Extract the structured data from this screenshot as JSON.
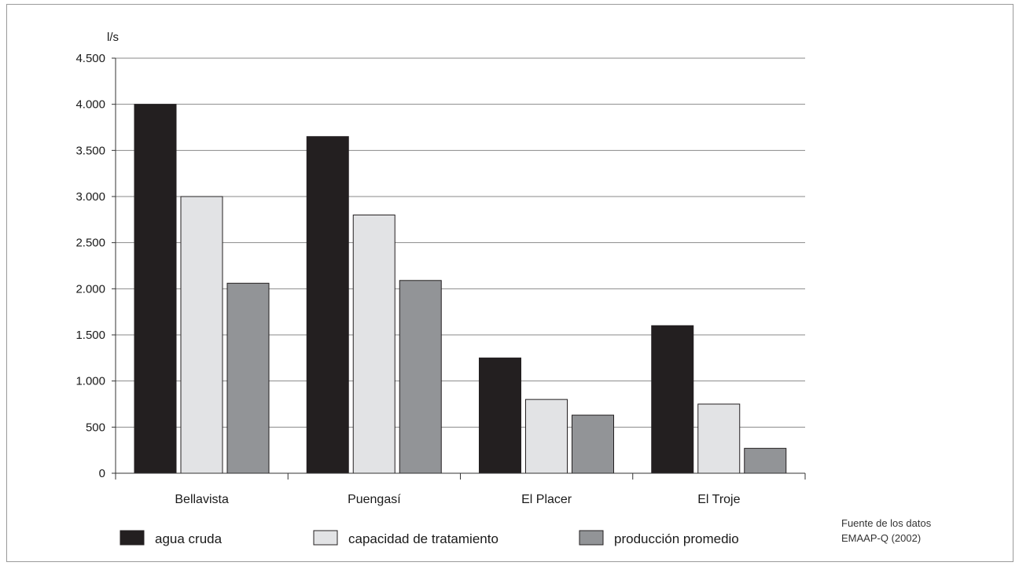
{
  "chart_data": {
    "type": "bar",
    "ylabel": "l/s",
    "ylim": [
      0,
      4500
    ],
    "yticks": [
      0,
      500,
      1000,
      1500,
      2000,
      2500,
      3000,
      3500,
      4000,
      4500
    ],
    "yticklabels": [
      "0",
      "500",
      "1.000",
      "1.500",
      "2.000",
      "2.500",
      "3.000",
      "3.500",
      "4.000",
      "4.500"
    ],
    "grid": true,
    "legend_position": "bottom",
    "categories": [
      "Bellavista",
      "Puengasí",
      "El Placer",
      "El Troje"
    ],
    "series": [
      {
        "name": "agua cruda",
        "color": "#231f20",
        "values": [
          4000,
          3650,
          1250,
          1600
        ]
      },
      {
        "name": "capacidad de tratamiento",
        "color": "#e2e3e5",
        "values": [
          3000,
          2800,
          800,
          750
        ]
      },
      {
        "name": "producción promedio",
        "color": "#929497",
        "values": [
          2060,
          2090,
          630,
          270
        ]
      }
    ]
  },
  "source": {
    "line1": "Fuente de los datos",
    "line2": "EMAAP-Q (2002)"
  }
}
